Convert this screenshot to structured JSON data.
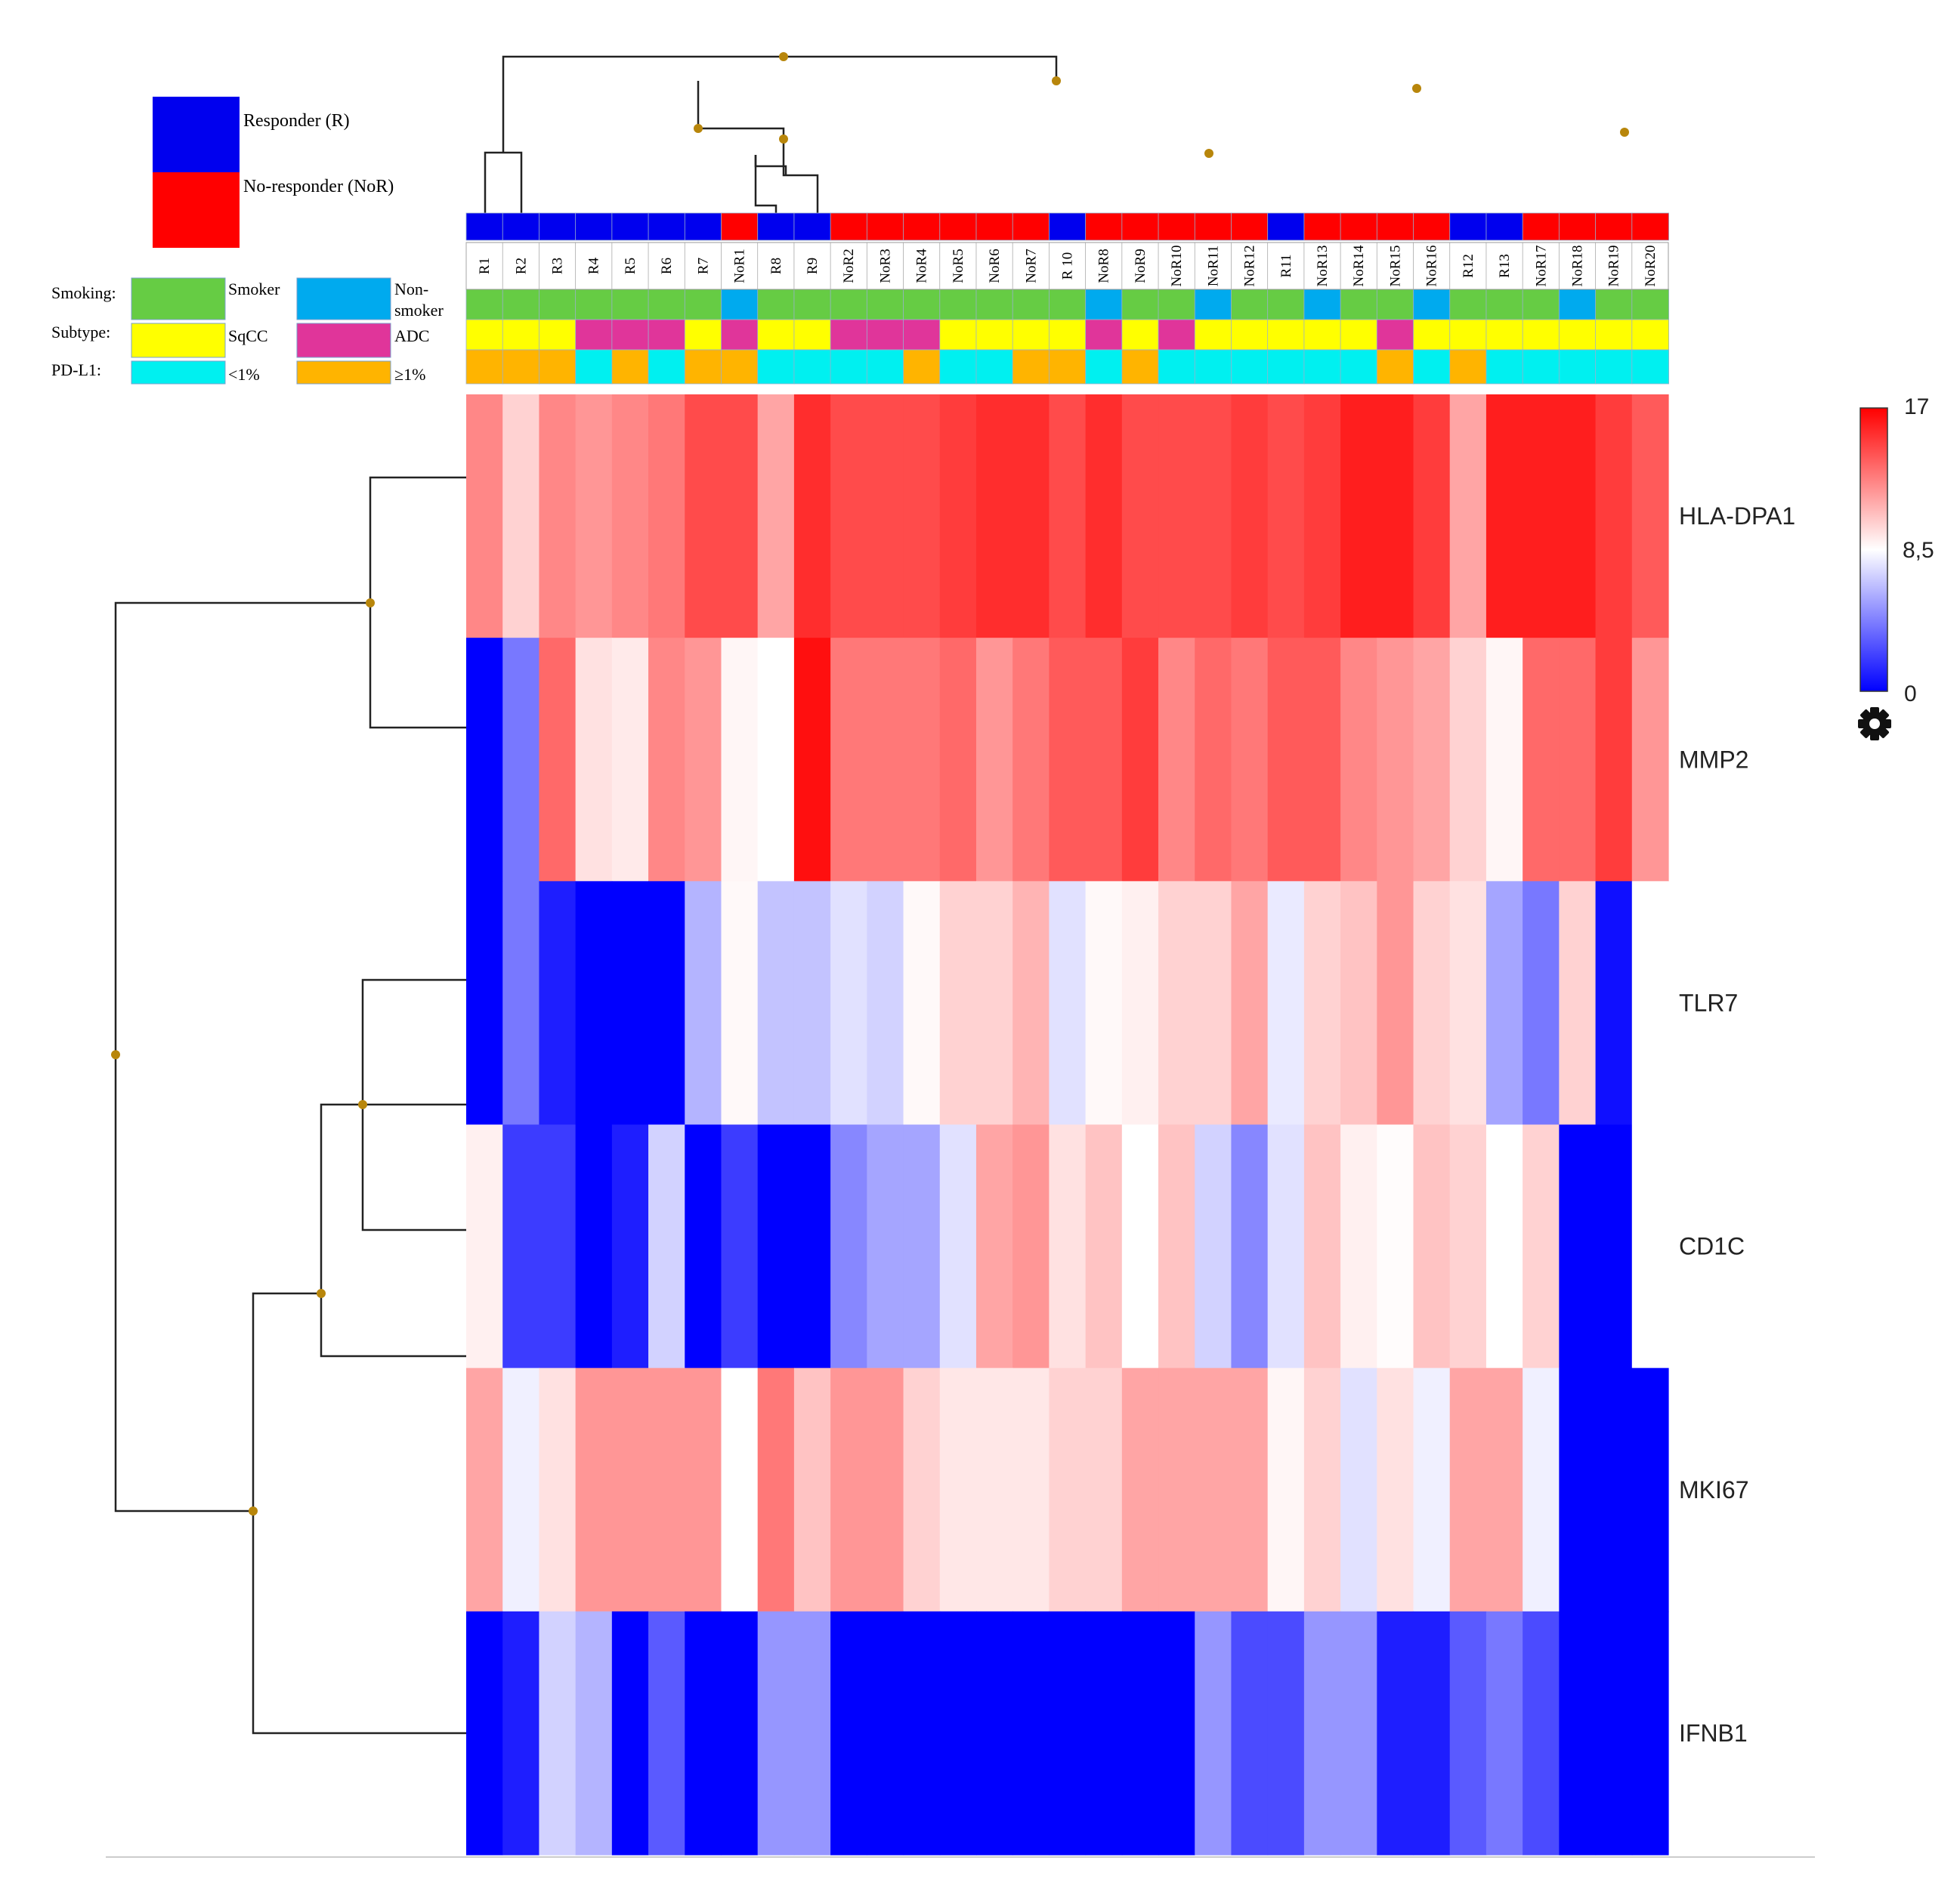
{
  "chart_data": {
    "type": "heatmap",
    "title": "",
    "columns": [
      "R1",
      "R2",
      "R3",
      "R4",
      "R5",
      "R6",
      "R7",
      "NoR1",
      "R8",
      "R9",
      "NoR2",
      "NoR3",
      "NoR4",
      "NoR5",
      "NoR6",
      "NoR7",
      "R 10",
      "NoR8",
      "NoR9",
      "NoR10",
      "NoR11",
      "NoR12",
      "R11",
      "NoR13",
      "NoR14",
      "NoR15",
      "NoR16",
      "R12",
      "R13",
      "NoR17",
      "NoR18",
      "NoR19",
      "NoR20"
    ],
    "genes": [
      "HLA-DPA1",
      "MMP2",
      "TLR7",
      "CD1C",
      "MKI67",
      "IFNB1"
    ],
    "values": [
      [
        12.5,
        10,
        12.5,
        12,
        12.5,
        13,
        14.5,
        14.5,
        11.5,
        15.5,
        14.5,
        14.5,
        14.5,
        15,
        15.5,
        15.5,
        14.5,
        15.5,
        14.5,
        14.5,
        14.5,
        15,
        14.5,
        15,
        16,
        16,
        15,
        11.5,
        16,
        16,
        16,
        15,
        14
      ],
      [
        0,
        4,
        13.5,
        9.5,
        9.2,
        12.5,
        12,
        8.8,
        8.5,
        16.5,
        13,
        13,
        13,
        13.5,
        12,
        13,
        14,
        14,
        15,
        12.5,
        13.5,
        13,
        14,
        14,
        12.5,
        12,
        11.5,
        10,
        8.8,
        13.5,
        13.5,
        15,
        12
      ],
      [
        0,
        4,
        1,
        0,
        0,
        0,
        6,
        8.7,
        6.5,
        6.5,
        7.5,
        7,
        8.7,
        10,
        10,
        11,
        7.5,
        8.7,
        9,
        10,
        10,
        11.5,
        7.8,
        10,
        10.5,
        12,
        10,
        9.5,
        5.5,
        4,
        10,
        0.5,
        8.5
      ],
      [
        9,
        2,
        2,
        0,
        1,
        7,
        0,
        2,
        0,
        0,
        4.5,
        5.5,
        5.5,
        7.5,
        11.5,
        12,
        9.5,
        10.5,
        8.5,
        10.5,
        7,
        4.5,
        7.5,
        10.5,
        9,
        8.6,
        10.5,
        10,
        8.5,
        10,
        0,
        0,
        8.5
      ],
      [
        11.5,
        8,
        9.5,
        12,
        12,
        12,
        12,
        8.5,
        13,
        10.5,
        12,
        12,
        10,
        9.3,
        9.3,
        9.3,
        10,
        10,
        11.5,
        11.5,
        11.5,
        11.5,
        8.8,
        10,
        7.5,
        9.5,
        8,
        11.5,
        11.5,
        8,
        0,
        0,
        0
      ],
      [
        0,
        1,
        7,
        6,
        0,
        3,
        0,
        0,
        5,
        5,
        0,
        0,
        0,
        0,
        0,
        0,
        0,
        0,
        0,
        0,
        5,
        2.5,
        2.5,
        5,
        5,
        1,
        1,
        3,
        4,
        2.5,
        0,
        0,
        0
      ]
    ],
    "colorscale": {
      "min": 0,
      "mid": 8.5,
      "max": 17,
      "min_color": "#0000ff",
      "mid_color": "#ffffff",
      "max_color": "#ff0000"
    },
    "colorbar_labels": [
      "17",
      "8,5",
      "0"
    ],
    "response": [
      "R",
      "R",
      "R",
      "R",
      "R",
      "R",
      "R",
      "NoR",
      "R",
      "R",
      "NoR",
      "NoR",
      "NoR",
      "NoR",
      "NoR",
      "NoR",
      "R",
      "NoR",
      "NoR",
      "NoR",
      "NoR",
      "NoR",
      "R",
      "NoR",
      "NoR",
      "NoR",
      "NoR",
      "R",
      "R",
      "NoR",
      "NoR",
      "NoR",
      "NoR"
    ],
    "smoking": [
      "S",
      "S",
      "S",
      "S",
      "S",
      "S",
      "S",
      "N",
      "S",
      "S",
      "S",
      "S",
      "S",
      "S",
      "S",
      "S",
      "S",
      "N",
      "S",
      "S",
      "N",
      "S",
      "S",
      "N",
      "S",
      "S",
      "N",
      "S",
      "S",
      "S",
      "N",
      "S",
      "S"
    ],
    "subtype": [
      "SqCC",
      "SqCC",
      "SqCC",
      "ADC",
      "ADC",
      "ADC",
      "SqCC",
      "ADC",
      "SqCC",
      "SqCC",
      "ADC",
      "ADC",
      "ADC",
      "SqCC",
      "SqCC",
      "SqCC",
      "SqCC",
      "ADC",
      "SqCC",
      "ADC",
      "SqCC",
      "SqCC",
      "SqCC",
      "SqCC",
      "SqCC",
      "ADC",
      "SqCC",
      "SqCC",
      "SqCC",
      "SqCC",
      "SqCC",
      "SqCC",
      "SqCC"
    ],
    "pdl1": [
      "ge1",
      "ge1",
      "ge1",
      "lt1",
      "ge1",
      "lt1",
      "ge1",
      "ge1",
      "lt1",
      "lt1",
      "lt1",
      "lt1",
      "ge1",
      "lt1",
      "lt1",
      "ge1",
      "ge1",
      "lt1",
      "ge1",
      "lt1",
      "lt1",
      "lt1",
      "lt1",
      "lt1",
      "lt1",
      "ge1",
      "lt1",
      "ge1",
      "lt1",
      "lt1",
      "lt1",
      "lt1",
      "lt1"
    ],
    "annotation_colors": {
      "R": "#0000ee",
      "NoR": "#ff0000",
      "S": "#66cc44",
      "N": "#00aaee",
      "SqCC": "#ffff00",
      "ADC": "#e0359a",
      "lt1": "#00f0f0",
      "ge1": "#ffb400"
    }
  },
  "legend": {
    "responder": "Responder (R)",
    "non_responder": "No-responder (NoR)",
    "smoking_label": "Smoking:",
    "smoker": "Smoker",
    "non_smoker_line1": "Non-",
    "non_smoker_line2": "smoker",
    "subtype_label": "Subtype:",
    "sqcc": "SqCC",
    "adc": "ADC",
    "pdl1_label": "PD-L1:",
    "pdl1_low": "<1%",
    "pdl1_high": "≥1%"
  },
  "icons": {
    "settings": "gear-icon"
  }
}
